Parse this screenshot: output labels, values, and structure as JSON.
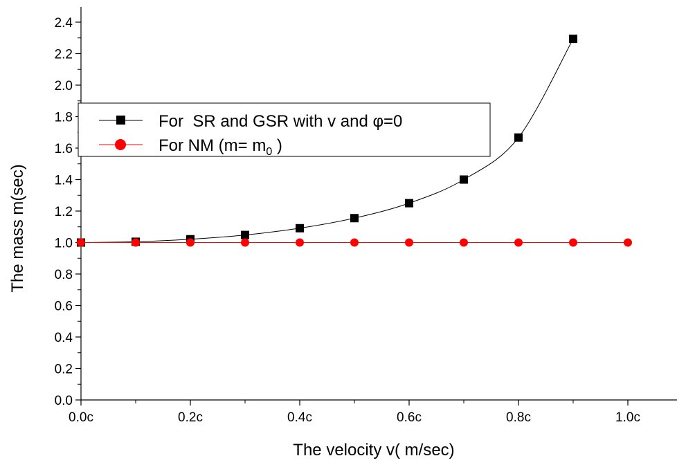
{
  "chart_data": {
    "type": "line",
    "xlabel": "The velocity v( m/sec)",
    "ylabel": "The mass m(sec)",
    "xlim": [
      0,
      1.1
    ],
    "ylim": [
      0,
      2.5
    ],
    "x_ticks": [
      {
        "value": 0.0,
        "label": "0.0c"
      },
      {
        "value": 0.2,
        "label": "0.2c"
      },
      {
        "value": 0.4,
        "label": "0.4c"
      },
      {
        "value": 0.6,
        "label": "0.6c"
      },
      {
        "value": 0.8,
        "label": "0.8c"
      },
      {
        "value": 1.0,
        "label": "1.0c"
      }
    ],
    "y_ticks": [
      {
        "value": 0.0,
        "label": "0.0"
      },
      {
        "value": 0.2,
        "label": "0.2"
      },
      {
        "value": 0.4,
        "label": "0.4"
      },
      {
        "value": 0.6,
        "label": "0.6"
      },
      {
        "value": 0.8,
        "label": "0.8"
      },
      {
        "value": 1.0,
        "label": "1.0"
      },
      {
        "value": 1.2,
        "label": "1.2"
      },
      {
        "value": 1.4,
        "label": "1.4"
      },
      {
        "value": 1.6,
        "label": "1.6"
      },
      {
        "value": 1.8,
        "label": "1.8"
      },
      {
        "value": 2.0,
        "label": "2.0"
      },
      {
        "value": 2.2,
        "label": "2.2"
      },
      {
        "value": 2.4,
        "label": "2.4"
      }
    ],
    "grid": false,
    "legend_position": "upper-left",
    "series": [
      {
        "name": "For  SR and GSR with v and φ=0",
        "color": "#000000",
        "marker": "square",
        "x": [
          0.0,
          0.1,
          0.2,
          0.3,
          0.4,
          0.5,
          0.6,
          0.7,
          0.8,
          0.9
        ],
        "y": [
          1.0,
          1.005,
          1.021,
          1.048,
          1.091,
          1.155,
          1.25,
          1.4,
          1.667,
          2.294
        ]
      },
      {
        "name_main": "For NM (m= m",
        "name_sub": "0",
        "name_end": " )",
        "color": "#ff0000",
        "marker": "circle",
        "x": [
          0.0,
          0.1,
          0.2,
          0.3,
          0.4,
          0.5,
          0.6,
          0.7,
          0.8,
          0.9,
          1.0
        ],
        "y": [
          1.0,
          1.0,
          1.0,
          1.0,
          1.0,
          1.0,
          1.0,
          1.0,
          1.0,
          1.0,
          1.0
        ]
      }
    ]
  }
}
